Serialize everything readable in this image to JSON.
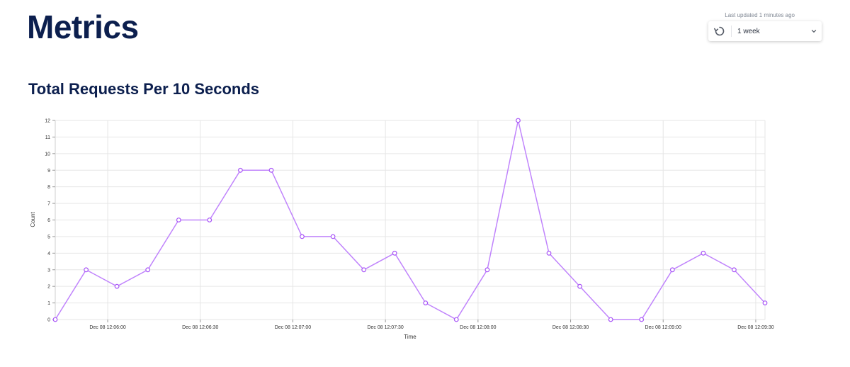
{
  "header": {
    "title": "Metrics",
    "last_updated": "Last updated 1 minutes ago",
    "range": {
      "selected": "1 week",
      "refresh_icon": "refresh-icon",
      "dropdown_icon": "chevron-down-icon"
    }
  },
  "chart": {
    "title": "Total Requests Per 10 Seconds"
  },
  "chart_data": {
    "type": "line",
    "title": "Total Requests Per 10 Seconds",
    "xlabel": "Time",
    "ylabel": "Count",
    "x": [
      "Dec 08 12:05:43",
      "Dec 08 12:05:53",
      "Dec 08 12:06:03",
      "Dec 08 12:06:13",
      "Dec 08 12:06:23",
      "Dec 08 12:06:33",
      "Dec 08 12:06:43",
      "Dec 08 12:06:53",
      "Dec 08 12:07:03",
      "Dec 08 12:07:13",
      "Dec 08 12:07:23",
      "Dec 08 12:07:33",
      "Dec 08 12:07:43",
      "Dec 08 12:07:53",
      "Dec 08 12:08:03",
      "Dec 08 12:08:13",
      "Dec 08 12:08:23",
      "Dec 08 12:08:33",
      "Dec 08 12:08:43",
      "Dec 08 12:08:53",
      "Dec 08 12:09:03",
      "Dec 08 12:09:13",
      "Dec 08 12:09:23",
      "Dec 08 12:09:33"
    ],
    "series": [
      {
        "values": [
          0,
          3,
          2,
          3,
          6,
          6,
          9,
          9,
          5,
          5,
          3,
          4,
          1,
          0,
          3,
          12,
          4,
          2,
          0,
          0,
          3,
          4,
          3,
          1
        ]
      }
    ],
    "x_ticks": [
      "Dec 08 12:06:00",
      "Dec 08 12:06:30",
      "Dec 08 12:07:00",
      "Dec 08 12:07:30",
      "Dec 08 12:08:00",
      "Dec 08 12:08:30",
      "Dec 08 12:09:00",
      "Dec 08 12:09:30"
    ],
    "y_ticks": [
      "0",
      "1",
      "2",
      "3",
      "4",
      "5",
      "6",
      "7",
      "8",
      "9",
      "10",
      "11",
      "12"
    ],
    "ylim": [
      0,
      12
    ],
    "grid": true,
    "line_color": "#c084fc",
    "marker_color": "#a855f7"
  }
}
